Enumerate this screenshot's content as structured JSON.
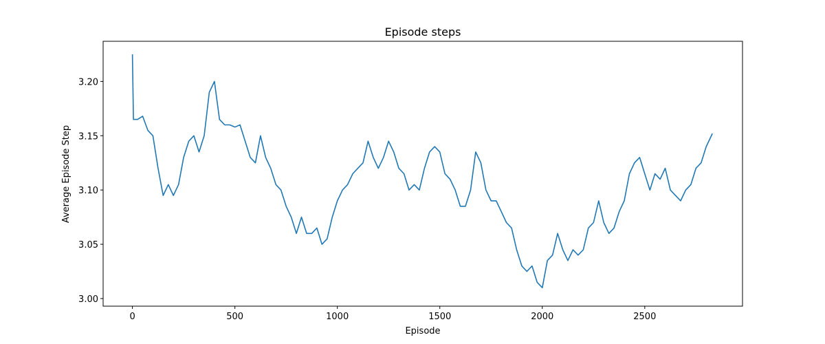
{
  "chart_data": {
    "type": "line",
    "title": "Episode steps",
    "x_label": "Episode",
    "y_label": "Average Episode Step",
    "x": [
      0,
      5,
      25,
      50,
      75,
      100,
      125,
      150,
      175,
      200,
      225,
      250,
      275,
      300,
      325,
      350,
      375,
      400,
      425,
      450,
      475,
      500,
      525,
      550,
      575,
      600,
      625,
      650,
      675,
      700,
      725,
      750,
      775,
      800,
      825,
      850,
      875,
      900,
      925,
      950,
      975,
      1000,
      1025,
      1050,
      1075,
      1100,
      1125,
      1150,
      1175,
      1200,
      1225,
      1250,
      1275,
      1300,
      1325,
      1350,
      1375,
      1400,
      1425,
      1450,
      1475,
      1500,
      1525,
      1550,
      1575,
      1600,
      1625,
      1650,
      1675,
      1700,
      1725,
      1750,
      1775,
      1800,
      1825,
      1850,
      1875,
      1900,
      1925,
      1950,
      1975,
      2000,
      2025,
      2050,
      2075,
      2100,
      2125,
      2150,
      2175,
      2200,
      2225,
      2250,
      2275,
      2300,
      2325,
      2350,
      2375,
      2400,
      2425,
      2450,
      2475,
      2500,
      2525,
      2550,
      2575,
      2600,
      2625,
      2650,
      2675,
      2700,
      2725,
      2750,
      2775,
      2800,
      2830
    ],
    "series": [
      {
        "name": "Average Episode Step",
        "color": "#1f77b4",
        "values": [
          3.225,
          3.165,
          3.165,
          3.168,
          3.155,
          3.15,
          3.12,
          3.095,
          3.105,
          3.095,
          3.105,
          3.13,
          3.145,
          3.15,
          3.135,
          3.15,
          3.19,
          3.2,
          3.165,
          3.16,
          3.16,
          3.158,
          3.16,
          3.145,
          3.13,
          3.125,
          3.15,
          3.13,
          3.12,
          3.105,
          3.1,
          3.085,
          3.075,
          3.06,
          3.075,
          3.06,
          3.06,
          3.065,
          3.05,
          3.055,
          3.075,
          3.09,
          3.1,
          3.105,
          3.115,
          3.12,
          3.125,
          3.145,
          3.13,
          3.12,
          3.13,
          3.145,
          3.135,
          3.12,
          3.115,
          3.1,
          3.105,
          3.1,
          3.12,
          3.135,
          3.14,
          3.135,
          3.115,
          3.11,
          3.1,
          3.085,
          3.085,
          3.1,
          3.135,
          3.125,
          3.1,
          3.09,
          3.09,
          3.08,
          3.07,
          3.065,
          3.045,
          3.03,
          3.025,
          3.03,
          3.015,
          3.01,
          3.035,
          3.04,
          3.06,
          3.045,
          3.035,
          3.045,
          3.04,
          3.045,
          3.065,
          3.07,
          3.09,
          3.07,
          3.06,
          3.065,
          3.08,
          3.09,
          3.115,
          3.125,
          3.13,
          3.115,
          3.1,
          3.115,
          3.11,
          3.12,
          3.1,
          3.095,
          3.09,
          3.1,
          3.105,
          3.12,
          3.125,
          3.14,
          3.152
        ]
      }
    ],
    "xlim": [
      -143,
      2977
    ],
    "ylim": [
      2.993,
      3.237
    ],
    "xticks": [
      0,
      500,
      1000,
      1500,
      2000,
      2500
    ],
    "yticks": [
      {
        "value": 3.0,
        "label": "3.00"
      },
      {
        "value": 3.05,
        "label": "3.05"
      },
      {
        "value": 3.1,
        "label": "3.10"
      },
      {
        "value": 3.15,
        "label": "3.15"
      },
      {
        "value": 3.2,
        "label": "3.20"
      }
    ]
  }
}
